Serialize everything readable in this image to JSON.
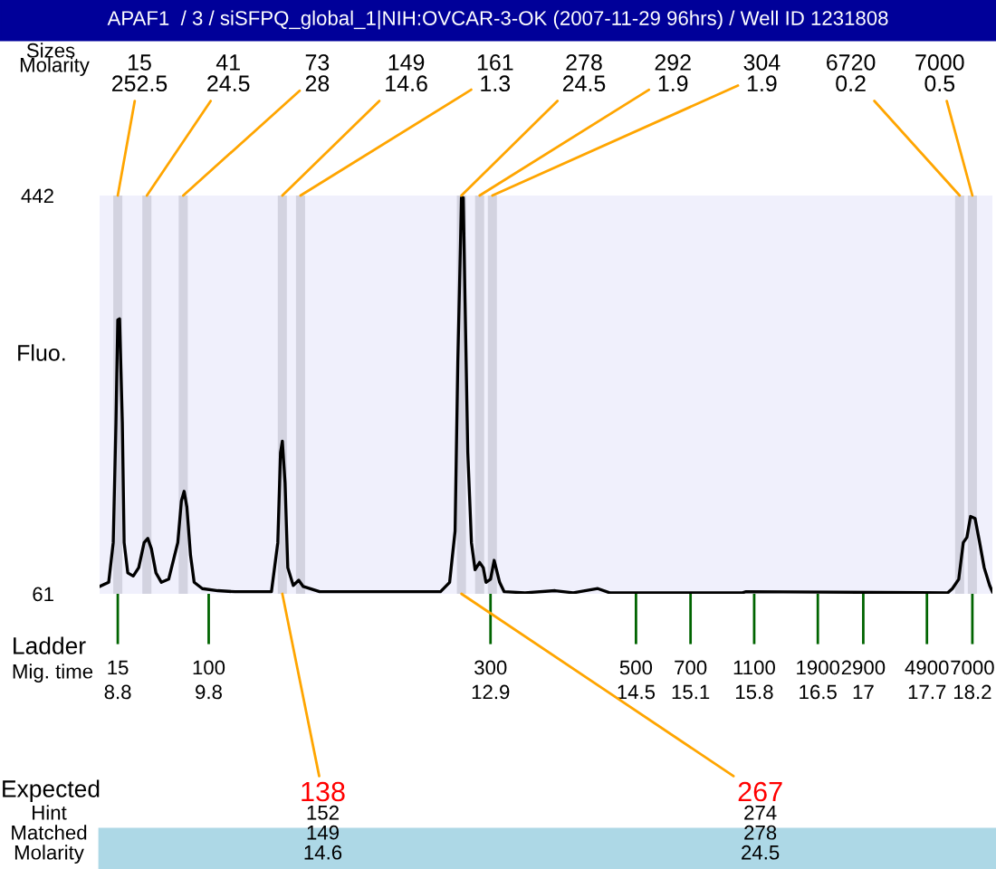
{
  "chart_data": {
    "type": "line",
    "title": "APAF1  / 3 / siSFPQ_global_1|NIH:OVCAR-3-OK (2007-11-29 96hrs) / Well ID 1231808",
    "ylabel": "Fluo.",
    "x": [
      8.6,
      8.7,
      8.75,
      8.78,
      8.8,
      8.82,
      8.85,
      8.87,
      8.91,
      8.97,
      9.03,
      9.09,
      9.13,
      9.17,
      9.22,
      9.28,
      9.36,
      9.46,
      9.5,
      9.53,
      9.56,
      9.6,
      9.64,
      9.73,
      9.9,
      10.09,
      10.49,
      10.56,
      10.59,
      10.61,
      10.64,
      10.67,
      10.73,
      10.79,
      10.84,
      11.02,
      12.35,
      12.45,
      12.51,
      12.54,
      12.57,
      12.58,
      12.6,
      12.62,
      12.65,
      12.69,
      12.73,
      12.78,
      12.82,
      12.85,
      12.9,
      12.94,
      12.96,
      13.0,
      13.05,
      13.28,
      13.61,
      13.81,
      14.08,
      14.21,
      15.67,
      15.71,
      17.93,
      17.98,
      18.05,
      18.1,
      18.14,
      18.18,
      18.23,
      18.28,
      18.33,
      18.39,
      18.42
    ],
    "series": [
      {
        "color": "#000000",
        "values": [
          68,
          72,
          110,
          225,
          323,
          324,
          225,
          110,
          81,
          78,
          86,
          110,
          114,
          104,
          81,
          72,
          75,
          110,
          150,
          159,
          144,
          98,
          72,
          66,
          64,
          63,
          63,
          110,
          196,
          207,
          167,
          86,
          69,
          74,
          68,
          63,
          63,
          72,
          121,
          283,
          398,
          440,
          440,
          340,
          196,
          110,
          84,
          91,
          86,
          72,
          75,
          93,
          86,
          72,
          63,
          62,
          64,
          62,
          66,
          62,
          62,
          63,
          62,
          66,
          75,
          110,
          115,
          135,
          133,
          110,
          86,
          69,
          63
        ]
      }
    ],
    "xlim": [
      8.6,
      18.42
    ],
    "ylim": [
      61,
      442
    ],
    "yticks": [
      61,
      442
    ],
    "xticks": [
      8.8,
      9.8,
      12.9,
      14.5,
      15.1,
      15.8,
      16.5,
      17,
      17.7,
      18.2
    ],
    "bands": [
      {
        "axis": "x",
        "from": 8.75,
        "to": 8.85,
        "label": "15\n252.5",
        "color": "#d3d3e0"
      },
      {
        "axis": "x",
        "from": 9.07,
        "to": 9.17,
        "label": "41\n24.5",
        "color": "#d3d3e0"
      },
      {
        "axis": "x",
        "from": 9.47,
        "to": 9.57,
        "label": "73\n28",
        "color": "#d3d3e0"
      },
      {
        "axis": "x",
        "from": 10.56,
        "to": 10.66,
        "label": "149\n14.6",
        "color": "#d3d3e0"
      },
      {
        "axis": "x",
        "from": 10.76,
        "to": 10.86,
        "label": "161\n1.3",
        "color": "#d3d3e0"
      },
      {
        "axis": "x",
        "from": 12.53,
        "to": 12.63,
        "label": "278\n24.5",
        "color": "#d3d3e0"
      },
      {
        "axis": "x",
        "from": 12.73,
        "to": 12.83,
        "label": "292\n1.9",
        "color": "#d3d3e0"
      },
      {
        "axis": "x",
        "from": 12.87,
        "to": 12.97,
        "label": "304\n1.9",
        "color": "#d3d3e0"
      },
      {
        "axis": "x",
        "from": 18.01,
        "to": 18.11,
        "label": "6720\n0.2",
        "color": "#d3d3e0"
      },
      {
        "axis": "x",
        "from": 18.15,
        "to": 18.25,
        "label": "7000\n0.5",
        "color": "#d3d3e0"
      }
    ],
    "annotations": [
      "Sizes",
      "Molarity",
      "Ladder",
      "Mig. time",
      "Expected",
      "Hint",
      "Matched",
      "Molarity",
      "152",
      "149",
      "14.6",
      "274",
      "278",
      "24.5",
      {
        "text": "138",
        "x": 10.61,
        "y": 61
      },
      {
        "text": "267",
        "x": 12.58,
        "y": 61
      },
      {
        "text": "15",
        "x": 8.8,
        "y": 61
      },
      {
        "text": "100",
        "x": 9.8,
        "y": 61
      },
      {
        "text": "300",
        "x": 12.9,
        "y": 61
      },
      {
        "text": "500",
        "x": 14.5,
        "y": 61
      },
      {
        "text": "700",
        "x": 15.1,
        "y": 61
      },
      {
        "text": "1100",
        "x": 15.8,
        "y": 61
      },
      {
        "text": "1900",
        "x": 16.5,
        "y": 61
      },
      {
        "text": "2900",
        "x": 17,
        "y": 61
      },
      {
        "text": "4900",
        "x": 17.7,
        "y": 61
      },
      {
        "text": "7000",
        "x": 18.2,
        "y": 61
      }
    ]
  }
}
